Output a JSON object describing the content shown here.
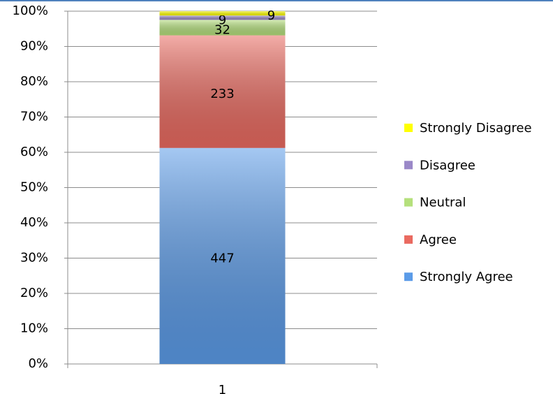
{
  "chart_data": {
    "type": "bar",
    "stacking": "percent",
    "categories": [
      "1"
    ],
    "series": [
      {
        "name": "Strongly Agree",
        "color": "#5b9be8",
        "values": [
          447
        ]
      },
      {
        "name": "Agree",
        "color": "#ea6a60",
        "values": [
          233
        ]
      },
      {
        "name": "Neutral",
        "color": "#b5e07c",
        "values": [
          32
        ]
      },
      {
        "name": "Disagree",
        "color": "#9a88c8",
        "values": [
          9
        ]
      },
      {
        "name": "Strongly Disagree",
        "color": "#ffff00",
        "values": [
          9
        ]
      }
    ],
    "ylim": [
      0,
      100
    ],
    "yticks": [
      {
        "value": 0,
        "label": "0%"
      },
      {
        "value": 10,
        "label": "10%"
      },
      {
        "value": 20,
        "label": "20%"
      },
      {
        "value": 30,
        "label": "30%"
      },
      {
        "value": 40,
        "label": "40%"
      },
      {
        "value": 50,
        "label": "50%"
      },
      {
        "value": 60,
        "label": "60%"
      },
      {
        "value": 70,
        "label": "70%"
      },
      {
        "value": 80,
        "label": "80%"
      },
      {
        "value": 90,
        "label": "90%"
      },
      {
        "value": 100,
        "label": "100%"
      }
    ],
    "grid": true,
    "legend": "right"
  }
}
